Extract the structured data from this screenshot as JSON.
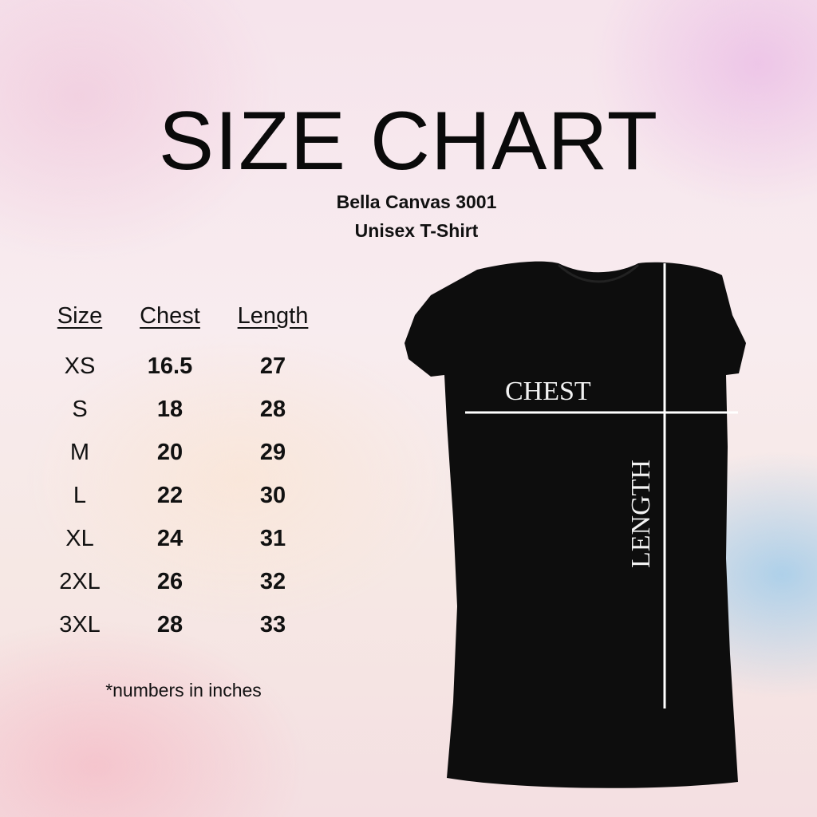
{
  "title": "SIZE CHART",
  "subtitle_line1": "Bella Canvas 3001",
  "subtitle_line2": "Unisex T-Shirt",
  "table": {
    "headers": [
      "Size",
      "Chest",
      "Length"
    ],
    "rows": [
      [
        "XS",
        "16.5",
        "27"
      ],
      [
        "S",
        "18",
        "28"
      ],
      [
        "M",
        "20",
        "29"
      ],
      [
        "L",
        "22",
        "30"
      ],
      [
        "XL",
        "24",
        "31"
      ],
      [
        "2XL",
        "26",
        "32"
      ],
      [
        "3XL",
        "28",
        "33"
      ]
    ]
  },
  "footnote": "*numbers in inches",
  "shirt": {
    "chest_label": "CHEST",
    "length_label": "LENGTH",
    "color": "#0d0d0d"
  }
}
